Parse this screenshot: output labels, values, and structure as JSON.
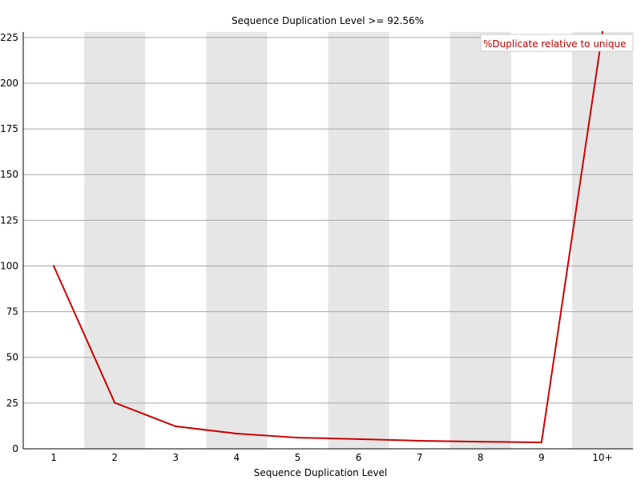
{
  "chart_data": {
    "type": "line",
    "title": "Sequence Duplication Level >= 92.56%",
    "xlabel": "Sequence Duplication Level",
    "ylabel": "",
    "categories": [
      "1",
      "2",
      "3",
      "4",
      "5",
      "6",
      "7",
      "8",
      "9",
      "10+"
    ],
    "ylim": [
      0,
      228
    ],
    "yticks": [
      0,
      25,
      50,
      75,
      100,
      125,
      150,
      175,
      200,
      225
    ],
    "grid": true,
    "legend_position": "top-right",
    "series": [
      {
        "name": "%Duplicate relative to unique",
        "color": "#cc0000",
        "values": [
          100,
          25.2,
          12.3,
          8.3,
          6.1,
          5.3,
          4.4,
          3.9,
          3.5,
          228
        ]
      }
    ]
  }
}
